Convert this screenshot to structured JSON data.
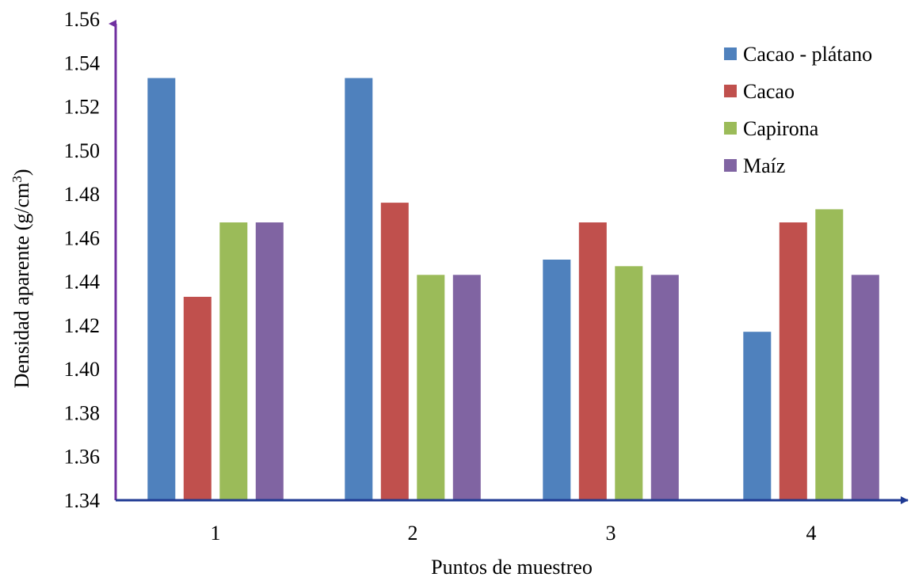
{
  "chart_data": {
    "type": "bar",
    "categories": [
      "1",
      "2",
      "3",
      "4"
    ],
    "series": [
      {
        "name": "Cacao - plátano",
        "color": "#4F81BD",
        "values": [
          1.533,
          1.533,
          1.45,
          1.417
        ]
      },
      {
        "name": "Cacao",
        "color": "#C0504D",
        "values": [
          1.433,
          1.476,
          1.467,
          1.467
        ]
      },
      {
        "name": "Capirona",
        "color": "#9BBB59",
        "values": [
          1.467,
          1.443,
          1.447,
          1.473
        ]
      },
      {
        "name": "Maíz",
        "color": "#8064A2",
        "values": [
          1.467,
          1.443,
          1.443,
          1.443
        ]
      }
    ],
    "xlabel": "Puntos de muestreo",
    "ylabel": "Densidad aparente (g/cm",
    "ylabel_superscript": "3",
    "ylabel_close": ")",
    "ylim": [
      1.34,
      1.56
    ],
    "yticks": [
      "1.34",
      "1.36",
      "1.38",
      "1.40",
      "1.42",
      "1.44",
      "1.46",
      "1.48",
      "1.50",
      "1.52",
      "1.54",
      "1.56"
    ],
    "grid": false,
    "legend_position": "top-right",
    "y_axis_color": "#7030A0",
    "x_axis_color": "#1F3A93"
  }
}
